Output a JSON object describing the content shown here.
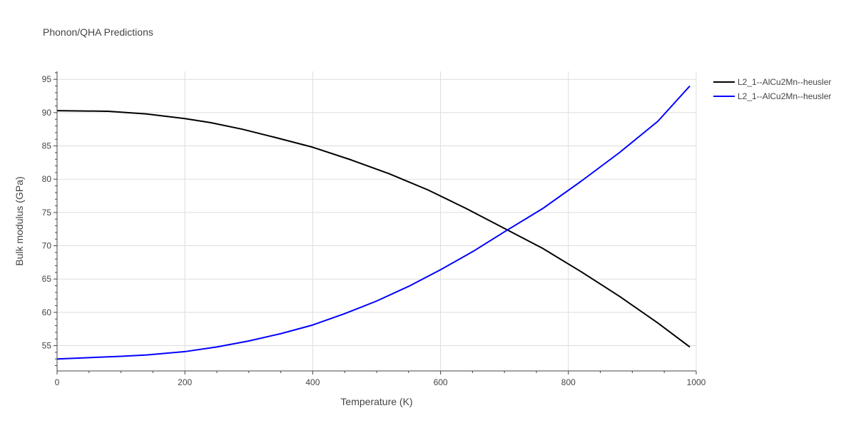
{
  "chart_data": {
    "type": "line",
    "title": "Phonon/QHA Predictions",
    "xlabel": "Temperature (K)",
    "ylabel": "Bulk modulus (GPa)",
    "xlim": [
      0,
      1000
    ],
    "ylim": [
      51.2,
      96.2
    ],
    "xticks": [
      0,
      200,
      400,
      600,
      800,
      1000
    ],
    "yticks": [
      55,
      60,
      65,
      70,
      75,
      80,
      85,
      90,
      95
    ],
    "grid": true,
    "legend_position": "top-right",
    "series": [
      {
        "name": "L2_1--AlCu2Mn--heusler",
        "color": "#000000",
        "x": [
          0,
          80,
          140,
          200,
          240,
          290,
          340,
          400,
          460,
          520,
          580,
          640,
          700,
          760,
          820,
          880,
          940,
          990
        ],
        "y": [
          90.3,
          90.2,
          89.8,
          89.1,
          88.5,
          87.5,
          86.3,
          84.8,
          82.9,
          80.8,
          78.4,
          75.6,
          72.6,
          69.6,
          66.1,
          62.4,
          58.4,
          54.8
        ]
      },
      {
        "name": "L2_1--AlCu2Mn--heusler",
        "color": "#0000ff",
        "x": [
          0,
          50,
          100,
          140,
          200,
          250,
          300,
          350,
          400,
          450,
          500,
          550,
          600,
          650,
          700,
          760,
          820,
          880,
          940,
          990
        ],
        "y": [
          53.0,
          53.2,
          53.4,
          53.6,
          54.1,
          54.8,
          55.7,
          56.8,
          58.1,
          59.8,
          61.7,
          63.9,
          66.4,
          69.1,
          72.1,
          75.6,
          79.7,
          84.0,
          88.7,
          94.0
        ]
      }
    ]
  }
}
